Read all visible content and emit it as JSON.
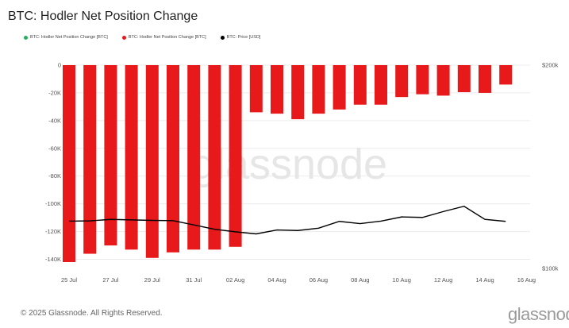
{
  "title": "BTC: Hodler Net Position Change",
  "legend": [
    {
      "label": "BTC: Hodler Net Position Change [BTC]",
      "color": "#27ae60"
    },
    {
      "label": "BTC: Hodler Net Position Change [BTC]",
      "color": "#e8191a"
    },
    {
      "label": "BTC: Price [USD]",
      "color": "#000000"
    }
  ],
  "watermark": "glassnode",
  "footer": "© 2025 Glassnode. All Rights Reserved.",
  "brand": "glassnode",
  "chart_data": {
    "type": "bar",
    "x_tick_labels": [
      "25 Jul",
      "27 Jul",
      "29 Jul",
      "31 Jul",
      "02 Aug",
      "04 Aug",
      "06 Aug",
      "08 Aug",
      "10 Aug",
      "12 Aug",
      "14 Aug",
      "16 Aug"
    ],
    "y_left_ticks": [
      "0",
      "-20K",
      "-40K",
      "-60K",
      "-80K",
      "-100K",
      "-120K",
      "-140K"
    ],
    "y_right_ticks": [
      "$200k",
      "$100k"
    ],
    "ylim_left": [
      -145000,
      0
    ],
    "ylim_right": [
      "log",
      100000,
      200000
    ],
    "series": [
      {
        "color": "#e8191a",
        "dates": [
          "2025-07-25",
          "2025-07-26",
          "2025-07-27",
          "2025-07-28",
          "2025-07-29",
          "2025-07-30",
          "2025-07-31",
          "2025-08-01",
          "2025-08-02",
          "2025-08-03",
          "2025-08-04",
          "2025-08-05",
          "2025-08-06",
          "2025-08-07",
          "2025-08-08",
          "2025-08-09",
          "2025-08-10",
          "2025-08-11",
          "2025-08-12",
          "2025-08-13",
          "2025-08-14",
          "2025-08-15"
        ],
        "values": [
          -142000,
          -136000,
          -130000,
          -133000,
          -139000,
          -135000,
          -133000,
          -133000,
          -131000,
          -34000,
          -35000,
          -39000,
          -35000,
          -32000,
          -28500,
          -28500,
          -23000,
          -21000,
          -22000,
          -19500,
          -20000,
          -14000
        ]
      },
      {
        "color": "#000000",
        "axis": "right",
        "dates": [
          "2025-07-25",
          "2025-07-26",
          "2025-07-27",
          "2025-07-28",
          "2025-07-29",
          "2025-07-30",
          "2025-07-31",
          "2025-08-01",
          "2025-08-02",
          "2025-08-03",
          "2025-08-04",
          "2025-08-05",
          "2025-08-06",
          "2025-08-07",
          "2025-08-08",
          "2025-08-09",
          "2025-08-10",
          "2025-08-11",
          "2025-08-12",
          "2025-08-13",
          "2025-08-14",
          "2025-08-15"
        ],
        "values": [
          117500,
          117600,
          118200,
          118000,
          117800,
          117700,
          116000,
          114300,
          113300,
          112500,
          114000,
          113800,
          114700,
          117400,
          116500,
          117500,
          119200,
          119000,
          121400,
          123600,
          118200,
          117400
        ]
      }
    ]
  }
}
